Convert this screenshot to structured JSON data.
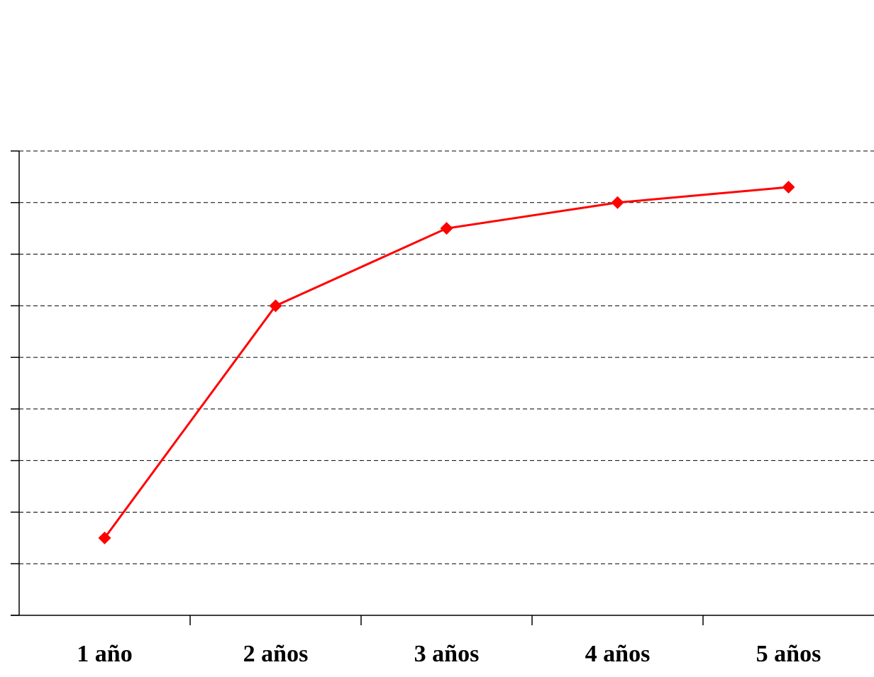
{
  "chart_data": {
    "type": "line",
    "categories": [
      "1 año",
      "2 años",
      "3 años",
      "4 años",
      "5 años"
    ],
    "series": [
      {
        "color": "#ff0000",
        "values": [
          1.5,
          6,
          7.5,
          8,
          8.3
        ]
      }
    ],
    "ylim": [
      0,
      9
    ],
    "yticks": [
      0,
      1,
      2,
      3,
      4,
      5,
      6,
      7,
      8,
      9
    ],
    "grid": true
  }
}
